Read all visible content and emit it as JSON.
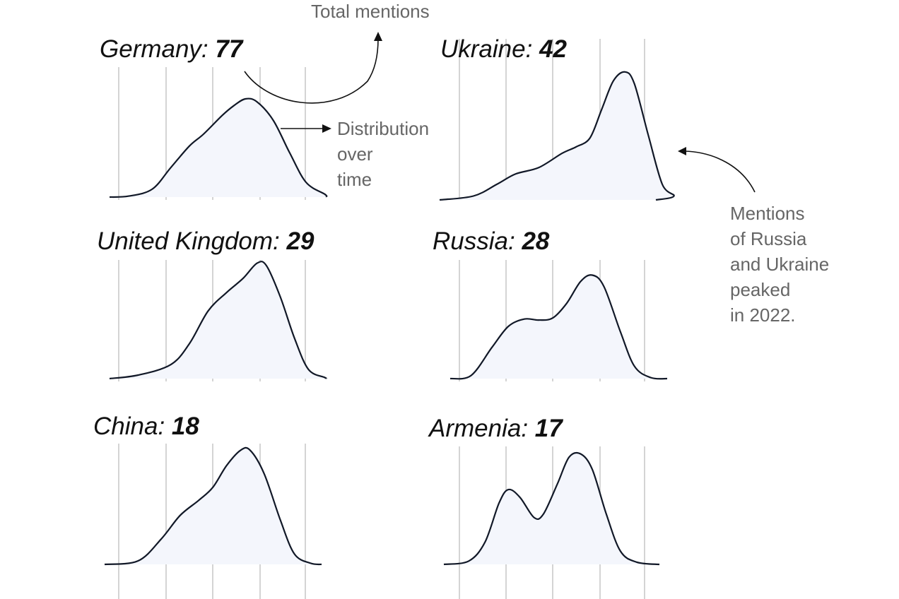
{
  "chart_data": {
    "type": "area",
    "description_of_series": "ridgeline density panels",
    "series": [
      {
        "name": "Germany",
        "total": "77",
        "label_prefix": "Germany: ",
        "curve": [
          [
            -2.2,
            0
          ],
          [
            -1.8,
            0.01
          ],
          [
            -1.3,
            0.08
          ],
          [
            -0.9,
            0.3
          ],
          [
            -0.5,
            0.52
          ],
          [
            -0.2,
            0.64
          ],
          [
            0.2,
            0.83
          ],
          [
            0.45,
            0.93
          ],
          [
            0.7,
            1.0
          ],
          [
            0.95,
            0.97
          ],
          [
            1.3,
            0.78
          ],
          [
            1.65,
            0.45
          ],
          [
            2.0,
            0.15
          ],
          [
            2.4,
            0.03
          ],
          [
            2.8,
            0
          ]
        ]
      },
      {
        "name": "Ukraine",
        "total": "42",
        "label_prefix": "Ukraine: ",
        "curve": [
          [
            -2.2,
            0
          ],
          [
            -1.7,
            0.03
          ],
          [
            -1.2,
            0.12
          ],
          [
            -0.8,
            0.2
          ],
          [
            -0.3,
            0.25
          ],
          [
            0.2,
            0.36
          ],
          [
            0.5,
            0.41
          ],
          [
            0.8,
            0.48
          ],
          [
            1.05,
            0.7
          ],
          [
            1.3,
            0.92
          ],
          [
            1.55,
            0.99
          ],
          [
            1.75,
            0.9
          ],
          [
            2.05,
            0.5
          ],
          [
            2.35,
            0.12
          ],
          [
            2.6,
            0.03
          ],
          [
            2.9,
            0
          ]
        ]
      },
      {
        "name": "United Kingdom",
        "total": "29",
        "label_prefix": "United Kingdom: ",
        "curve": [
          [
            -2.2,
            0
          ],
          [
            -1.6,
            0.03
          ],
          [
            -0.9,
            0.12
          ],
          [
            -0.5,
            0.3
          ],
          [
            -0.1,
            0.58
          ],
          [
            0.3,
            0.74
          ],
          [
            0.65,
            0.86
          ],
          [
            0.95,
            0.99
          ],
          [
            1.15,
            0.97
          ],
          [
            1.45,
            0.7
          ],
          [
            1.75,
            0.35
          ],
          [
            2.05,
            0.08
          ],
          [
            2.4,
            0.01
          ],
          [
            2.8,
            0
          ]
        ]
      },
      {
        "name": "Russia",
        "total": "28",
        "label_prefix": "Russia: ",
        "curve": [
          [
            -2.2,
            0
          ],
          [
            -1.75,
            0.03
          ],
          [
            -1.3,
            0.3
          ],
          [
            -0.95,
            0.5
          ],
          [
            -0.6,
            0.57
          ],
          [
            -0.3,
            0.56
          ],
          [
            0.0,
            0.58
          ],
          [
            0.3,
            0.72
          ],
          [
            0.6,
            0.93
          ],
          [
            0.85,
            0.99
          ],
          [
            1.1,
            0.88
          ],
          [
            1.45,
            0.45
          ],
          [
            1.75,
            0.12
          ],
          [
            2.1,
            0.01
          ],
          [
            2.5,
            0
          ]
        ]
      },
      {
        "name": "China",
        "total": "18",
        "label_prefix": "China: ",
        "curve": [
          [
            -2.2,
            0
          ],
          [
            -1.6,
            0.03
          ],
          [
            -1.1,
            0.22
          ],
          [
            -0.7,
            0.42
          ],
          [
            -0.3,
            0.55
          ],
          [
            0.0,
            0.66
          ],
          [
            0.3,
            0.85
          ],
          [
            0.6,
            0.98
          ],
          [
            0.8,
            0.98
          ],
          [
            1.1,
            0.78
          ],
          [
            1.45,
            0.38
          ],
          [
            1.75,
            0.09
          ],
          [
            2.1,
            0.01
          ],
          [
            2.5,
            0
          ]
        ]
      },
      {
        "name": "Armenia",
        "total": "17",
        "label_prefix": "Armenia: ",
        "curve": [
          [
            -2.2,
            0
          ],
          [
            -1.8,
            0.03
          ],
          [
            -1.45,
            0.2
          ],
          [
            -1.15,
            0.55
          ],
          [
            -0.95,
            0.67
          ],
          [
            -0.7,
            0.6
          ],
          [
            -0.4,
            0.42
          ],
          [
            -0.2,
            0.45
          ],
          [
            0.1,
            0.72
          ],
          [
            0.35,
            0.96
          ],
          [
            0.6,
            0.99
          ],
          [
            0.85,
            0.85
          ],
          [
            1.15,
            0.45
          ],
          [
            1.45,
            0.12
          ],
          [
            1.8,
            0.02
          ],
          [
            2.2,
            0
          ]
        ]
      }
    ],
    "grid": true
  },
  "annotations": {
    "total_mentions": "Total mentions",
    "distribution_lines": [
      "Distribution",
      "over",
      "time"
    ],
    "peak_note_lines": [
      "Mentions",
      "of Russia",
      "and Ukraine",
      "peaked",
      "in 2022."
    ]
  }
}
